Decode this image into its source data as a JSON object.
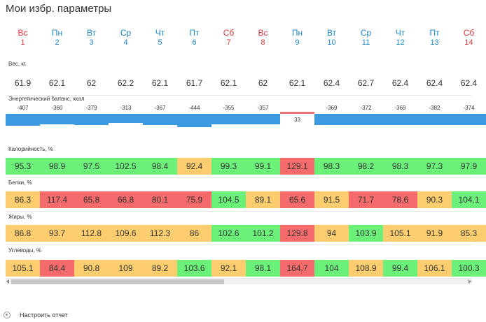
{
  "title": "Мои избр. параметры",
  "days": [
    {
      "name": "Вс",
      "num": "1",
      "weekend": true
    },
    {
      "name": "Пн",
      "num": "2",
      "weekend": false
    },
    {
      "name": "Вт",
      "num": "3",
      "weekend": false
    },
    {
      "name": "Ср",
      "num": "4",
      "weekend": false
    },
    {
      "name": "Чт",
      "num": "5",
      "weekend": false
    },
    {
      "name": "Пт",
      "num": "6",
      "weekend": false
    },
    {
      "name": "Сб",
      "num": "7",
      "weekend": true
    },
    {
      "name": "Вс",
      "num": "8",
      "weekend": true
    },
    {
      "name": "Пн",
      "num": "9",
      "weekend": false
    },
    {
      "name": "Вт",
      "num": "10",
      "weekend": false
    },
    {
      "name": "Ср",
      "num": "11",
      "weekend": false
    },
    {
      "name": "Чт",
      "num": "12",
      "weekend": false
    },
    {
      "name": "Пт",
      "num": "13",
      "weekend": false
    },
    {
      "name": "Сб",
      "num": "14",
      "weekend": true
    }
  ],
  "weight": {
    "label": "Вес, кг.",
    "values": [
      "61.9",
      "62.1",
      "62",
      "62.2",
      "62.1",
      "61.7",
      "62.1",
      "62",
      "62.1",
      "62.4",
      "62.7",
      "62.4",
      "62.4",
      "62.4"
    ]
  },
  "energy": {
    "label": "Энергетический баланс, ккал",
    "values": [
      -407,
      -360,
      -379,
      -313,
      -367,
      -444,
      -355,
      -357,
      33,
      -369,
      -372,
      -369,
      -382,
      -374
    ],
    "bar_color": "#3b9ae0",
    "positive_color": "#e87672"
  },
  "metrics": [
    {
      "label": "Калорийность, %",
      "values": [
        "95.3",
        "98.9",
        "97.5",
        "102.5",
        "98.4",
        "92.4",
        "99.3",
        "99.1",
        "129.1",
        "98.3",
        "98.2",
        "98.3",
        "97.3",
        "97.9"
      ],
      "status": [
        "g",
        "g",
        "g",
        "g",
        "g",
        "y",
        "g",
        "g",
        "r",
        "g",
        "g",
        "g",
        "g",
        "g"
      ]
    },
    {
      "label": "Белки, %",
      "values": [
        "86.3",
        "117.4",
        "65.8",
        "66.8",
        "80.1",
        "75.9",
        "104.5",
        "89.1",
        "65.6",
        "91.5",
        "71.7",
        "78.6",
        "90.3",
        "104.1"
      ],
      "status": [
        "y",
        "r",
        "r",
        "r",
        "r",
        "r",
        "g",
        "y",
        "r",
        "y",
        "r",
        "r",
        "y",
        "g"
      ]
    },
    {
      "label": "Жиры, %",
      "values": [
        "86.8",
        "93.7",
        "112.8",
        "109.6",
        "112.3",
        "86",
        "102.6",
        "101.2",
        "129.8",
        "94",
        "103.9",
        "105.1",
        "91.9",
        "85.3"
      ],
      "status": [
        "y",
        "y",
        "y",
        "y",
        "y",
        "y",
        "g",
        "g",
        "r",
        "y",
        "g",
        "y",
        "y",
        "y"
      ]
    },
    {
      "label": "Углеводы, %",
      "values": [
        "105.1",
        "84.4",
        "90.8",
        "109",
        "89.2",
        "103.6",
        "92.1",
        "98.1",
        "164.7",
        "104",
        "108.9",
        "99.4",
        "106.1",
        "100.3"
      ],
      "status": [
        "y",
        "r",
        "y",
        "y",
        "y",
        "g",
        "y",
        "g",
        "r",
        "g",
        "y",
        "g",
        "y",
        "g"
      ]
    }
  ],
  "colors": {
    "green": "#6bf07a",
    "yellow": "#fccd6e",
    "red": "#f56b6b",
    "weekday": "#1e88c9",
    "weekend": "#d9383a"
  },
  "footer": {
    "settings_label": "Настроить отчет",
    "settings_icon": "gear-icon"
  }
}
